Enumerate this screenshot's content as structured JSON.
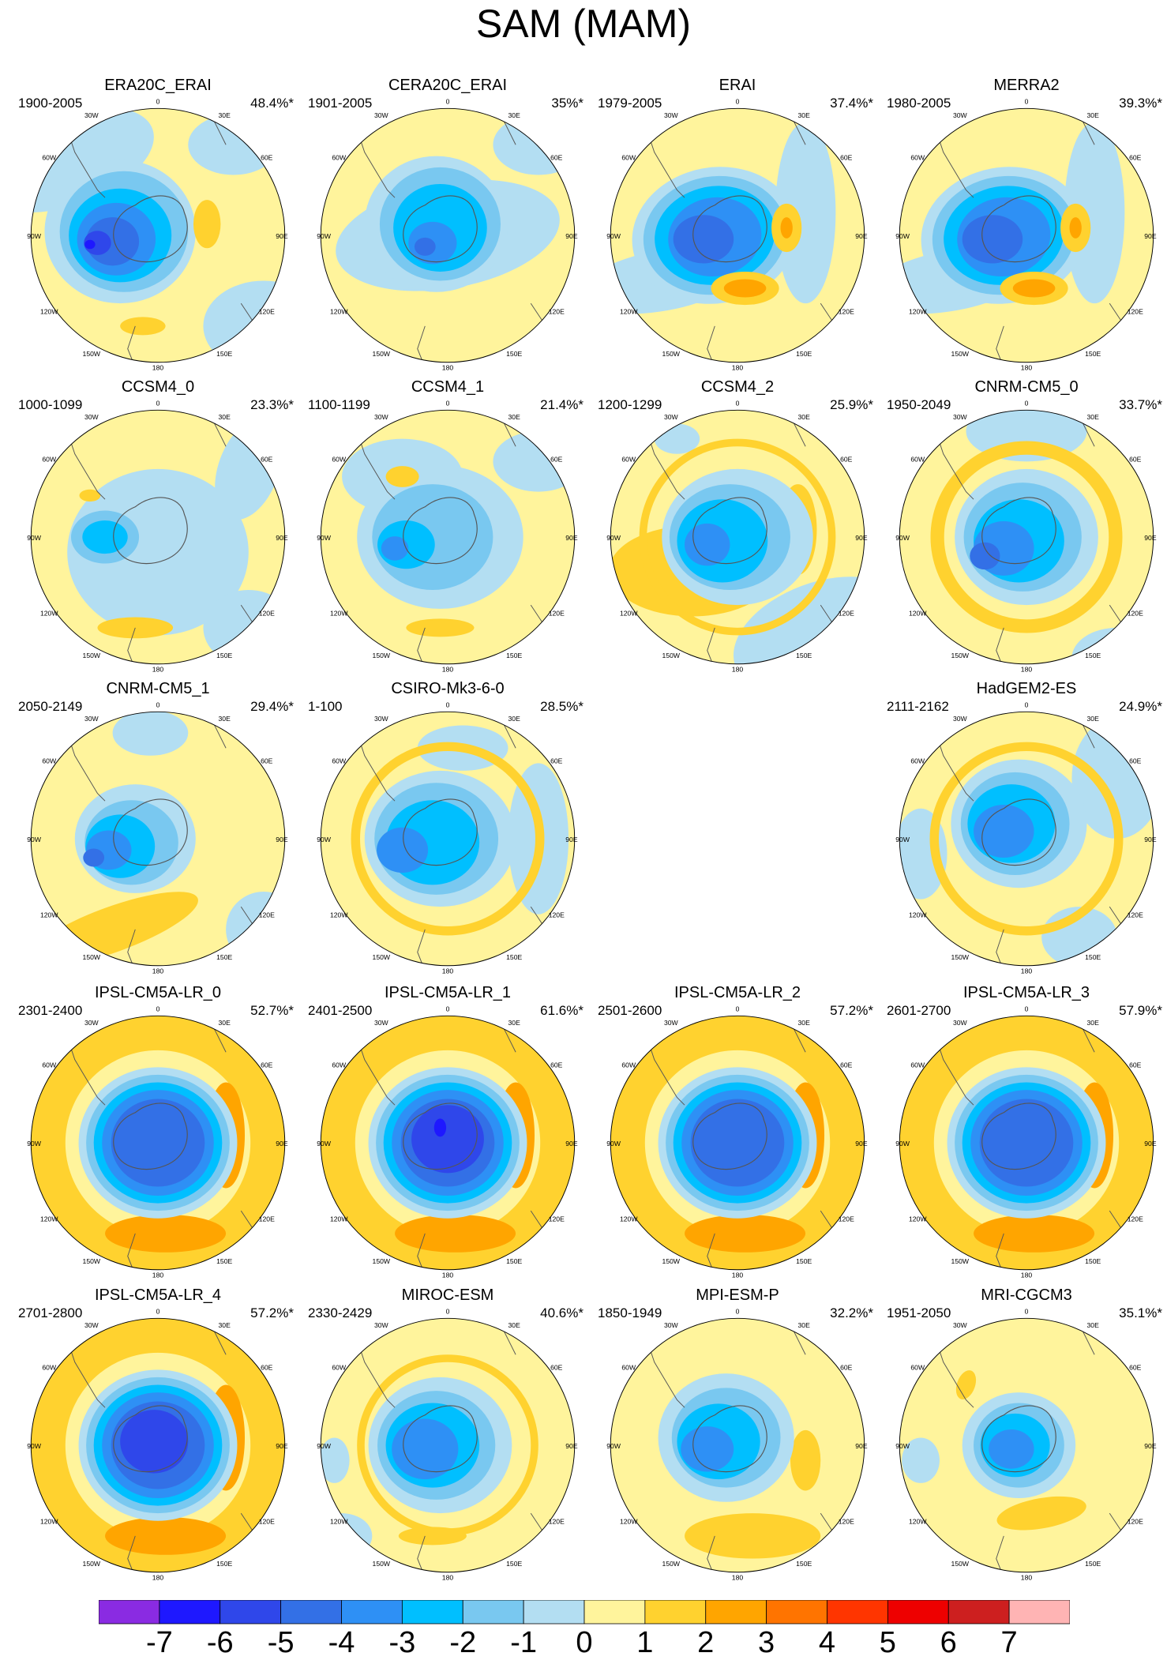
{
  "figure_title": "SAM (MAM)",
  "chart_data": {
    "type": "heatmap",
    "title": "SAM (MAM)",
    "projection": "south polar stereographic",
    "longitude_labels": [
      "0",
      "30E",
      "60E",
      "90E",
      "120E",
      "150E",
      "180",
      "150W",
      "120W",
      "90W",
      "60W",
      "30W"
    ],
    "panels": [
      {
        "name": "ERA20C_ERAI",
        "period": "1900-2005",
        "explained_variance": "48.4%*"
      },
      {
        "name": "CERA20C_ERAI",
        "period": "1901-2005",
        "explained_variance": "35%*"
      },
      {
        "name": "ERAI",
        "period": "1979-2005",
        "explained_variance": "37.4%*"
      },
      {
        "name": "MERRA2",
        "period": "1980-2005",
        "explained_variance": "39.3%*"
      },
      {
        "name": "CCSM4_0",
        "period": "1000-1099",
        "explained_variance": "23.3%*"
      },
      {
        "name": "CCSM4_1",
        "period": "1100-1199",
        "explained_variance": "21.4%*"
      },
      {
        "name": "CCSM4_2",
        "period": "1200-1299",
        "explained_variance": "25.9%*"
      },
      {
        "name": "CNRM-CM5_0",
        "period": "1950-2049",
        "explained_variance": "33.7%*"
      },
      {
        "name": "CNRM-CM5_1",
        "period": "2050-2149",
        "explained_variance": "29.4%*"
      },
      {
        "name": "CSIRO-Mk3-6-0",
        "period": "1-100",
        "explained_variance": "28.5%*"
      },
      {
        "name": "HadGEM2-ES",
        "period": "2111-2162",
        "explained_variance": "24.9%*"
      },
      {
        "name": "IPSL-CM5A-LR_0",
        "period": "2301-2400",
        "explained_variance": "52.7%*"
      },
      {
        "name": "IPSL-CM5A-LR_1",
        "period": "2401-2500",
        "explained_variance": "61.6%*"
      },
      {
        "name": "IPSL-CM5A-LR_2",
        "period": "2501-2600",
        "explained_variance": "57.2%*"
      },
      {
        "name": "IPSL-CM5A-LR_3",
        "period": "2601-2700",
        "explained_variance": "57.9%*"
      },
      {
        "name": "IPSL-CM5A-LR_4",
        "period": "2701-2800",
        "explained_variance": "57.2%*"
      },
      {
        "name": "MIROC-ESM",
        "period": "2330-2429",
        "explained_variance": "40.6%*"
      },
      {
        "name": "MPI-ESM-P",
        "period": "1850-1949",
        "explained_variance": "32.2%*"
      },
      {
        "name": "MRI-CGCM3",
        "period": "1951-2050",
        "explained_variance": "35.1%*"
      }
    ],
    "colorbar": {
      "labels": [
        "-7",
        "-6",
        "-5",
        "-4",
        "-3",
        "-2",
        "-1",
        "0",
        "1",
        "2",
        "3",
        "4",
        "5",
        "6",
        "7"
      ],
      "colors": [
        "#8a2be2",
        "#1e18ff",
        "#2f47ea",
        "#3370e6",
        "#2e90f5",
        "#00bfff",
        "#79c8f0",
        "#b3def2",
        "#fff49c",
        "#ffd22f",
        "#ffa500",
        "#ff7400",
        "#ff3500",
        "#ee0000",
        "#cd1f1f",
        "#ffb4b4"
      ]
    }
  }
}
